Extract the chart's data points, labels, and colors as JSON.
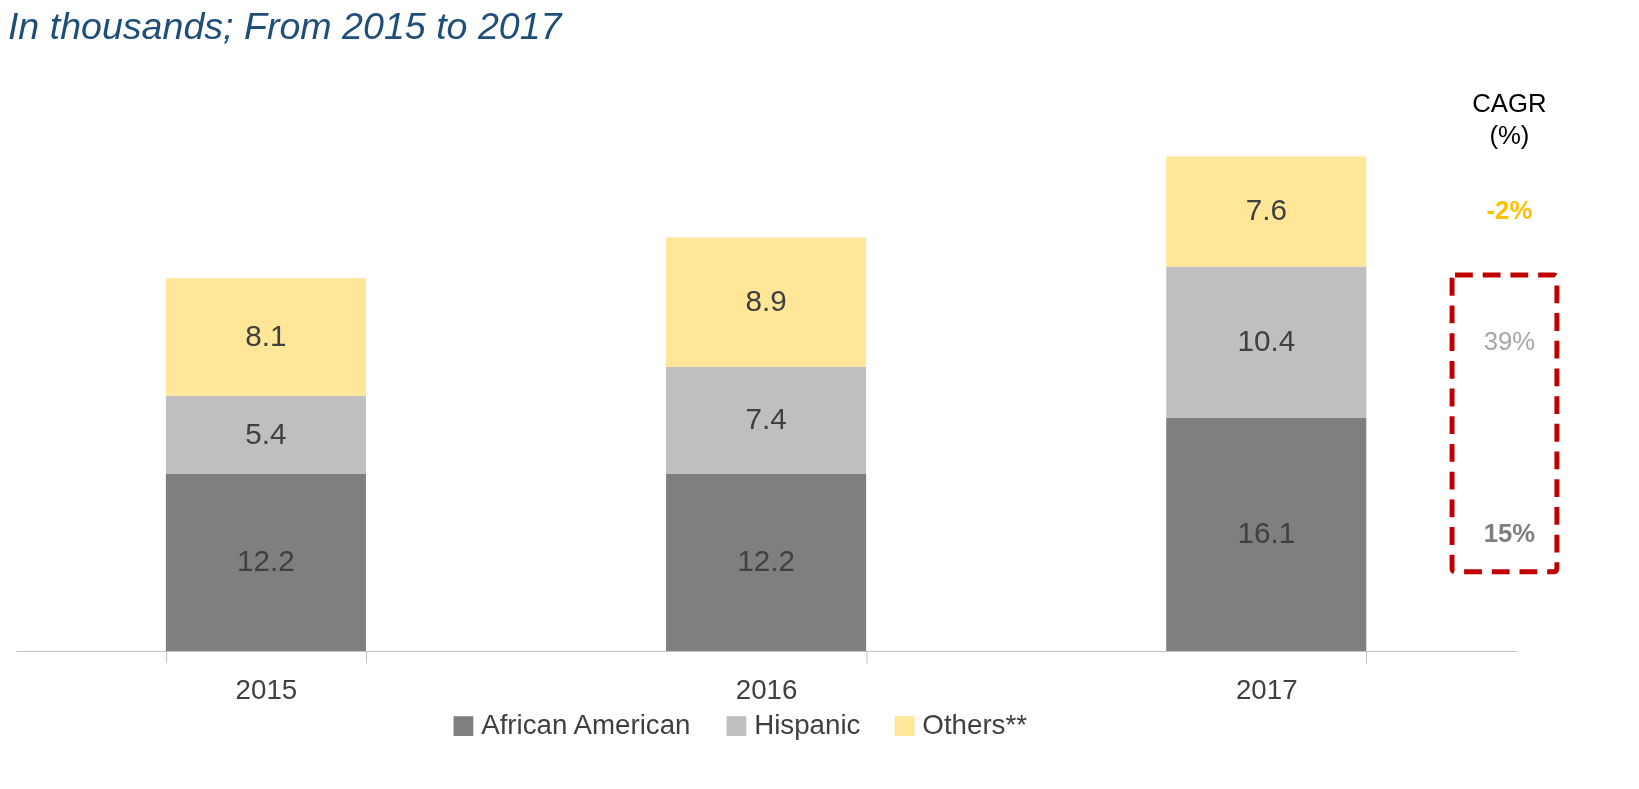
{
  "chart_data": {
    "type": "bar",
    "stacked": true,
    "data_labels": true,
    "title": "In thousands; From 2015 to 2017",
    "categories": [
      "2015",
      "2016",
      "2017"
    ],
    "series": [
      {
        "name": "African American",
        "color": "#7f7f7f",
        "values": [
          12.2,
          12.2,
          16.1
        ]
      },
      {
        "name": "Hispanic",
        "color": "#bfbfbf",
        "values": [
          5.4,
          7.4,
          10.4
        ]
      },
      {
        "name": "Others**",
        "color": "#ffe699",
        "values": [
          8.1,
          8.9,
          7.6
        ]
      }
    ],
    "annotations": [
      "CAGR\n(%)",
      "-2%",
      "39%",
      "15%"
    ],
    "legend": "bottom",
    "grid": false,
    "tick_labels": "x"
  }
}
